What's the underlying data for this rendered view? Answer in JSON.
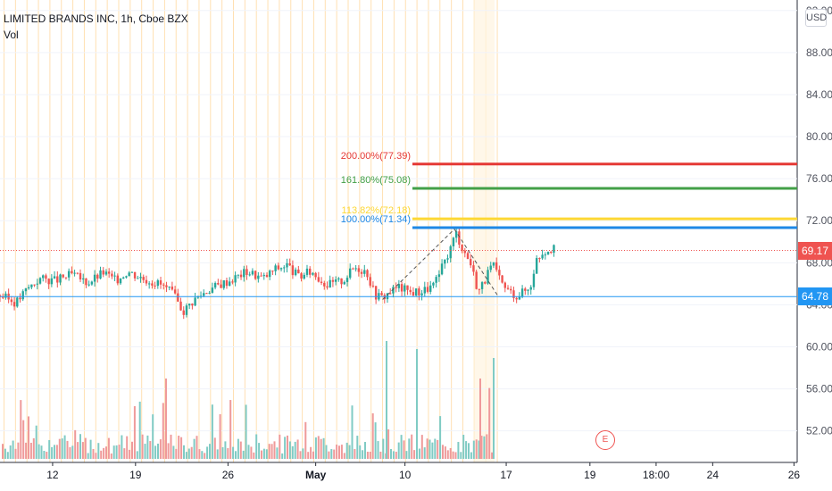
{
  "legend": {
    "title": "LIMITED BRANDS INC, 1h, Cboe BZX",
    "vol": "Vol"
  },
  "currency": "USD",
  "last_price_label": "69.17",
  "support_label": "64.78",
  "earnings_marker": "E",
  "colors": {
    "up": "#26a69a",
    "down": "#ef5350",
    "last": "#ef5350",
    "support": "#2196f3",
    "session": "#ffe0b2"
  },
  "chart_data": {
    "type": "candlestick",
    "title": "LIMITED BRANDS INC, 1h, Cboe BZX",
    "ylim": [
      49,
      93
    ],
    "y_ticks": [
      "92.00",
      "88.00",
      "84.00",
      "80.00",
      "76.00",
      "72.00",
      "68.00",
      "64.00",
      "60.00",
      "56.00",
      "52.00"
    ],
    "x_ticks": [
      "12",
      "19",
      "26",
      "May",
      "10",
      "17",
      "19",
      "18:00",
      "24",
      "26"
    ],
    "last_price": 69.17,
    "support_line": 64.78,
    "fib_levels": [
      {
        "label": "200.00%(77.39)",
        "value": 77.39,
        "color": "#e53935"
      },
      {
        "label": "161.80%(75.08)",
        "value": 75.08,
        "color": "#43a047"
      },
      {
        "label": "113.82%(72.18)",
        "value": 72.18,
        "color": "#fdd835"
      },
      {
        "label": "100.00%(71.34)",
        "value": 71.34,
        "color": "#1e88e5"
      }
    ],
    "pattern_points": [
      {
        "t": 0.48,
        "price": 64.5
      },
      {
        "t": 0.57,
        "price": 71.2
      },
      {
        "t": 0.625,
        "price": 64.8
      }
    ],
    "price_path": [
      [
        0.0,
        64.9
      ],
      [
        0.02,
        64.2
      ],
      [
        0.035,
        65.6
      ],
      [
        0.05,
        66.5
      ],
      [
        0.07,
        66.3
      ],
      [
        0.09,
        66.9
      ],
      [
        0.11,
        66.1
      ],
      [
        0.13,
        67.1
      ],
      [
        0.145,
        66.3
      ],
      [
        0.16,
        67.2
      ],
      [
        0.18,
        66.5
      ],
      [
        0.2,
        66.0
      ],
      [
        0.215,
        65.2
      ],
      [
        0.23,
        63.4
      ],
      [
        0.245,
        64.6
      ],
      [
        0.26,
        65.4
      ],
      [
        0.275,
        65.9
      ],
      [
        0.29,
        66.4
      ],
      [
        0.31,
        67.2
      ],
      [
        0.33,
        66.5
      ],
      [
        0.345,
        67.4
      ],
      [
        0.36,
        67.8
      ],
      [
        0.375,
        66.6
      ],
      [
        0.39,
        67.2
      ],
      [
        0.41,
        65.9
      ],
      [
        0.43,
        66.3
      ],
      [
        0.445,
        67.6
      ],
      [
        0.46,
        67.2
      ],
      [
        0.47,
        65.0
      ],
      [
        0.48,
        64.7
      ],
      [
        0.49,
        65.3
      ],
      [
        0.5,
        65.7
      ],
      [
        0.515,
        65.2
      ],
      [
        0.53,
        65.3
      ],
      [
        0.545,
        65.9
      ],
      [
        0.555,
        67.6
      ],
      [
        0.565,
        69.4
      ],
      [
        0.572,
        70.9
      ],
      [
        0.58,
        69.4
      ],
      [
        0.59,
        68.0
      ],
      [
        0.6,
        65.3
      ],
      [
        0.61,
        66.6
      ],
      [
        0.618,
        67.9
      ],
      [
        0.628,
        66.1
      ],
      [
        0.638,
        65.3
      ],
      [
        0.648,
        64.9
      ],
      [
        0.655,
        65.2
      ],
      [
        0.665,
        65.6
      ],
      [
        0.672,
        68.2
      ],
      [
        0.68,
        69.0
      ],
      [
        0.69,
        69.4
      ],
      [
        0.697,
        69.17
      ]
    ]
  }
}
